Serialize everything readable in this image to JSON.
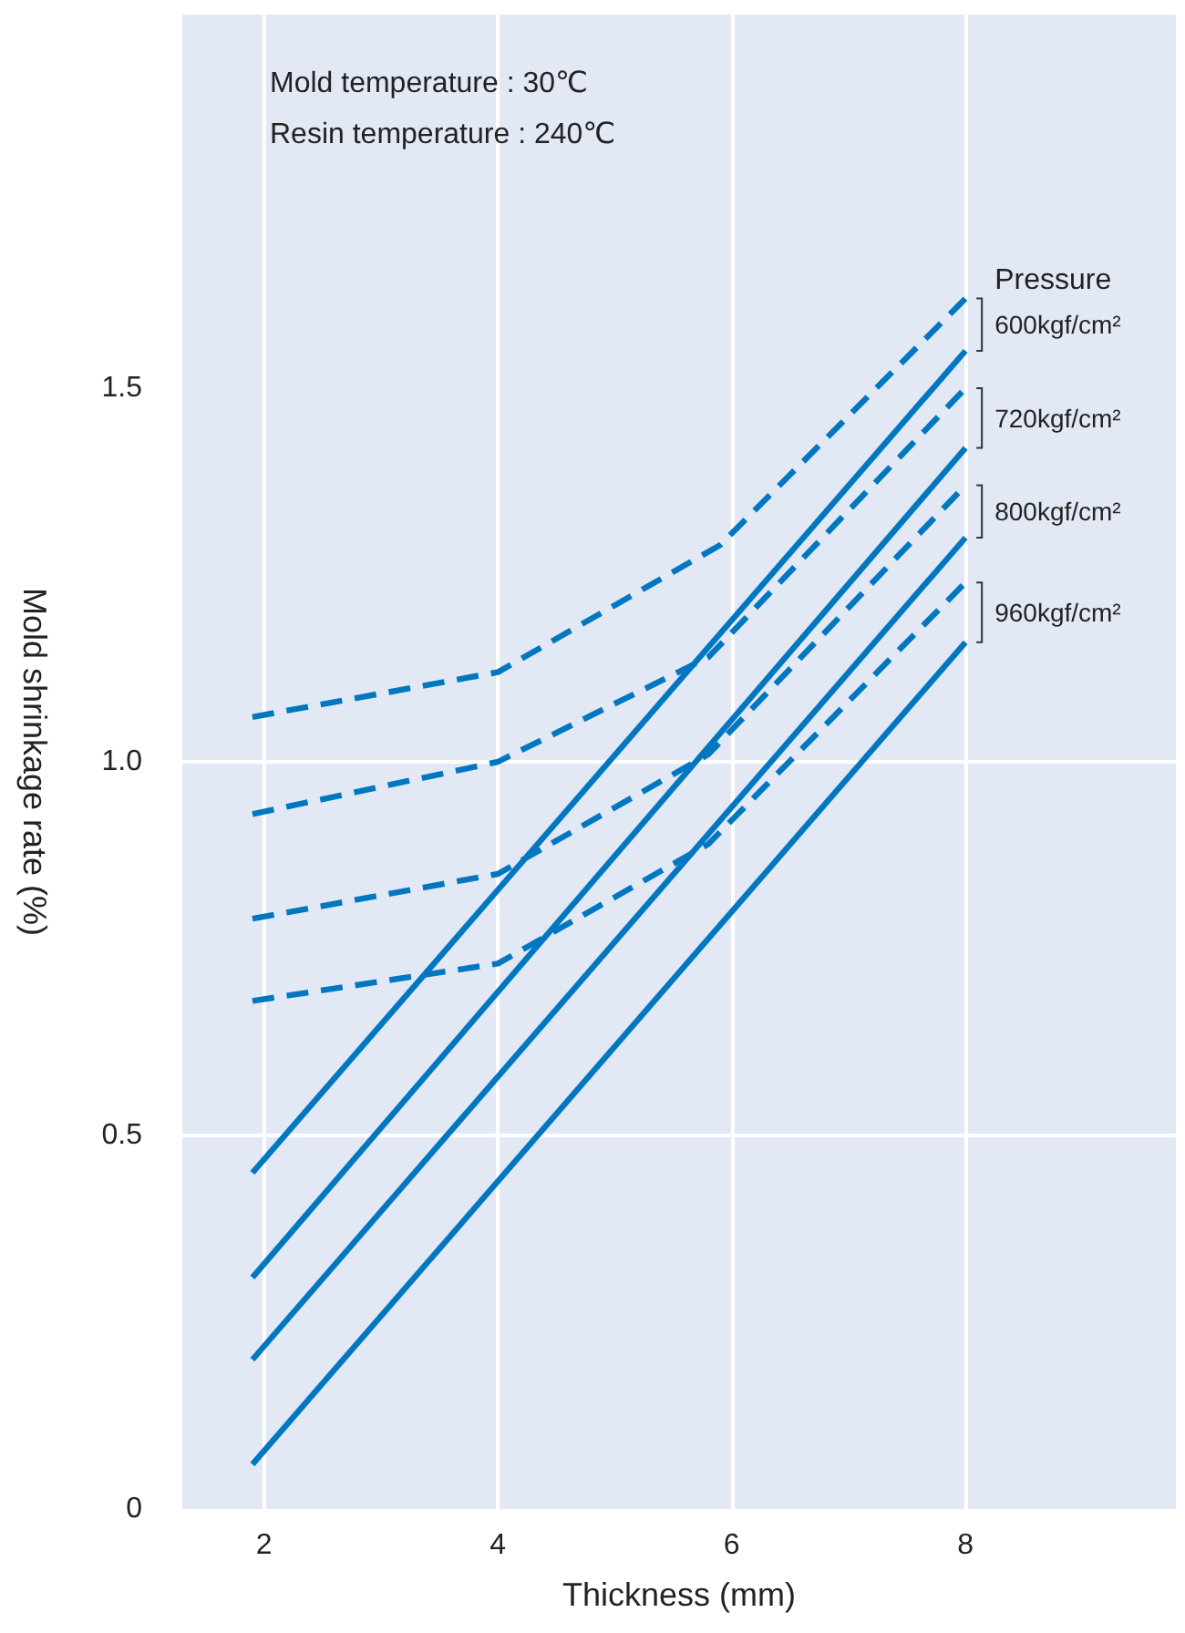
{
  "chart_data": {
    "type": "line",
    "xlabel": "Thickness (mm)",
    "ylabel": "Mold shrinkage rate (%)",
    "legend_title": "Pressure",
    "annotations": [
      "Mold temperature : 30℃",
      "Resin temperature : 240℃"
    ],
    "xlim": [
      1.3,
      9.8
    ],
    "xticks": [
      2,
      4,
      6,
      8
    ],
    "ylim": [
      0,
      2
    ],
    "yticks": [
      0,
      0.5,
      {
        "value": 1,
        "label": "1.0"
      },
      1.5
    ],
    "grid": true,
    "legend": false,
    "marker": "none",
    "series": [
      {
        "name": "600kgf/cm²",
        "color": "#0077c0",
        "line_style": "dashed",
        "x": [
          1.9,
          4,
          5.9,
          8
        ],
        "values": [
          1.06,
          1.12,
          1.29,
          1.62
        ]
      },
      {
        "color": "#0077c0",
        "line_style": "solid",
        "x": [
          1.9,
          8
        ],
        "values": [
          0.45,
          1.55
        ]
      },
      {
        "name": "720kgf/cm²",
        "color": "#0077c0",
        "line_style": "dashed",
        "x": [
          1.9,
          4,
          5.8,
          8
        ],
        "values": [
          0.93,
          1.0,
          1.14,
          1.5
        ]
      },
      {
        "color": "#0077c0",
        "line_style": "solid",
        "x": [
          1.9,
          8
        ],
        "values": [
          0.31,
          1.42
        ]
      },
      {
        "name": "800kgf/cm²",
        "color": "#0077c0",
        "line_style": "dashed",
        "x": [
          1.9,
          4,
          5.8,
          8
        ],
        "values": [
          0.79,
          0.85,
          1.01,
          1.37
        ]
      },
      {
        "color": "#0077c0",
        "line_style": "solid",
        "x": [
          1.9,
          8
        ],
        "values": [
          0.2,
          1.3
        ]
      },
      {
        "name": "960kgf/cm²",
        "color": "#0077c0",
        "line_style": "dashed",
        "x": [
          1.9,
          4,
          5.8,
          8
        ],
        "values": [
          0.68,
          0.73,
          0.89,
          1.24
        ]
      },
      {
        "color": "#0077c0",
        "line_style": "solid",
        "x": [
          1.9,
          8
        ],
        "values": [
          0.06,
          1.16
        ]
      }
    ]
  }
}
